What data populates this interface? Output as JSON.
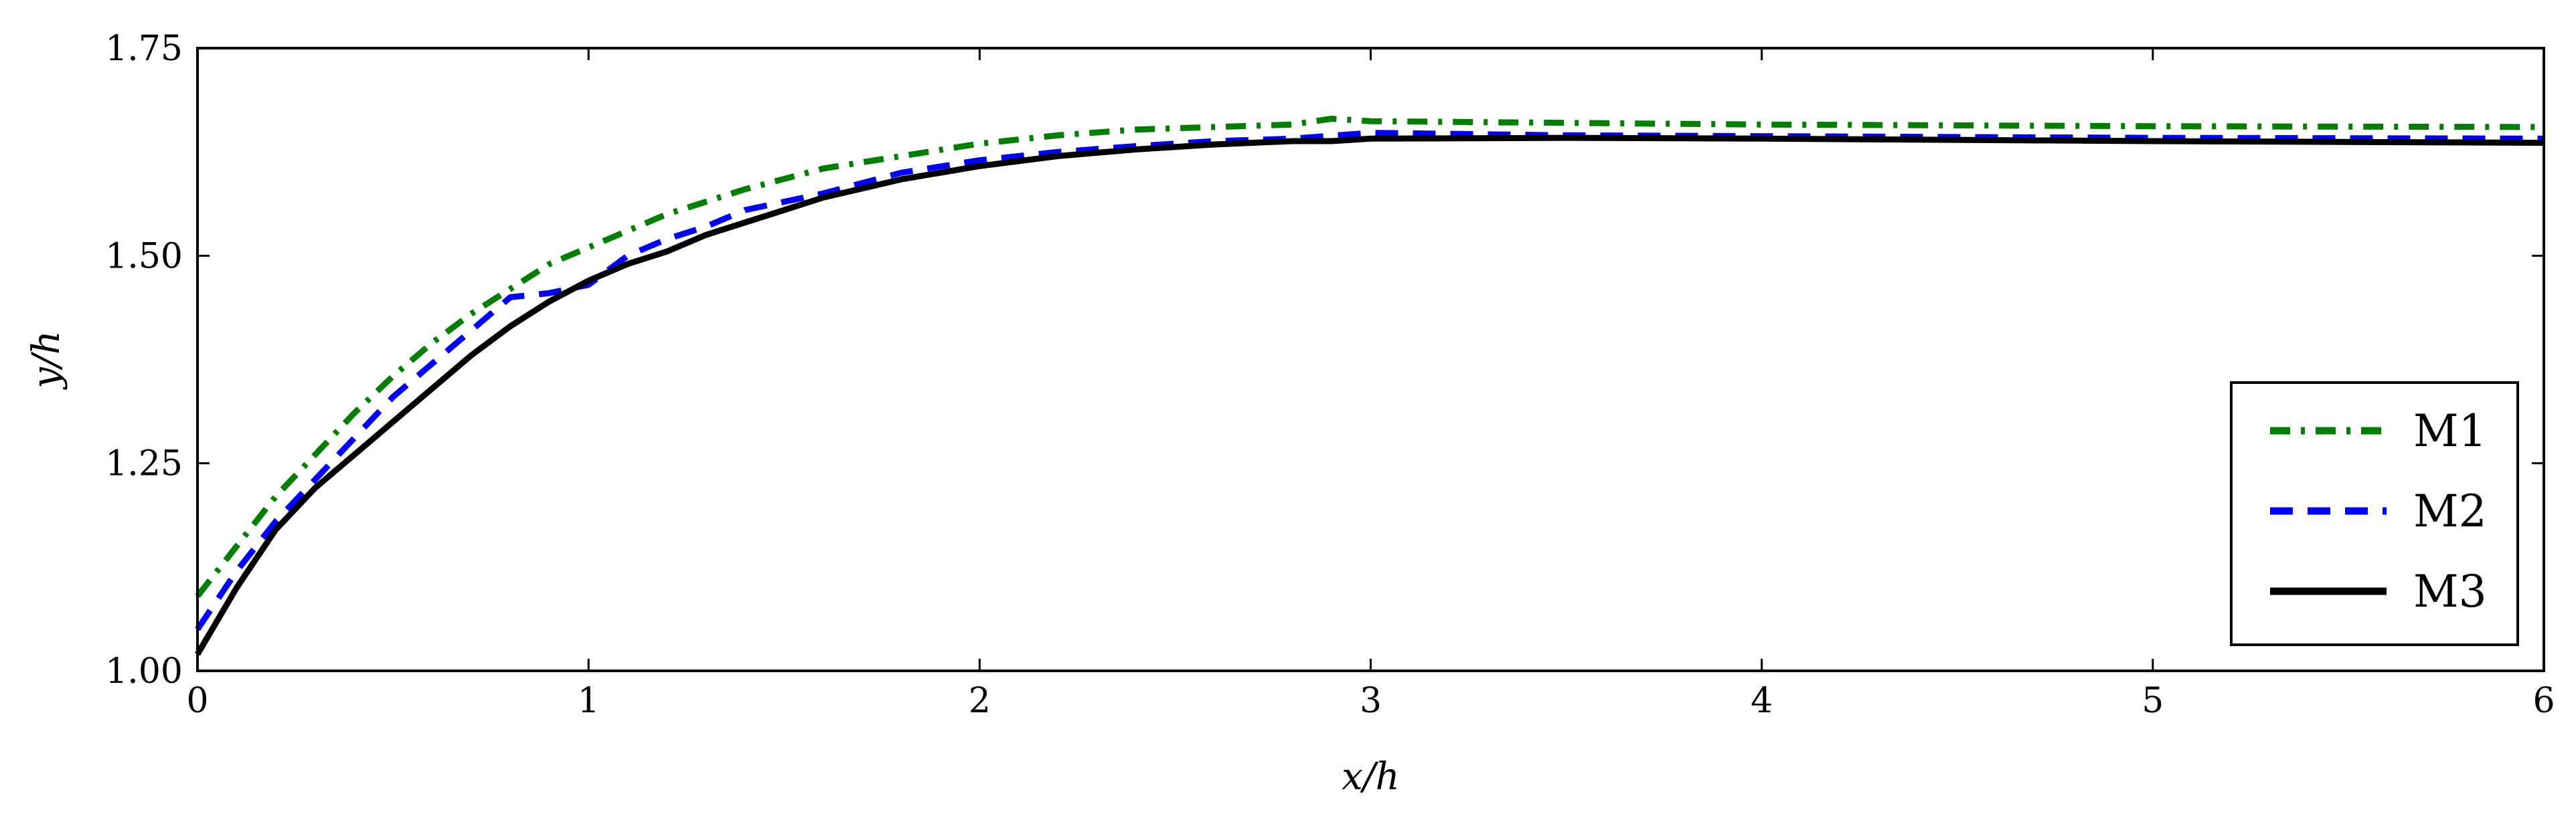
{
  "chart_data": {
    "type": "line",
    "xlabel": "x/h",
    "ylabel": "y/h",
    "xlim": [
      0,
      6
    ],
    "ylim": [
      1.0,
      1.75
    ],
    "xticks": [
      "0",
      "1",
      "2",
      "3",
      "4",
      "5",
      "6"
    ],
    "yticks": [
      "1.00",
      "1.25",
      "1.50",
      "1.75"
    ],
    "grid": false,
    "legend_position": "bottom-right",
    "series": [
      {
        "name": "M1",
        "color": "#007f00",
        "style": "dash-dot",
        "x": [
          0,
          0.1,
          0.2,
          0.3,
          0.4,
          0.5,
          0.6,
          0.7,
          0.8,
          0.9,
          1.0,
          1.2,
          1.4,
          1.6,
          1.8,
          2.0,
          2.2,
          2.4,
          2.6,
          2.8,
          2.9,
          3.0,
          3.5,
          4.0,
          5.0,
          6.0
        ],
        "y": [
          1.09,
          1.15,
          1.21,
          1.26,
          1.31,
          1.355,
          1.395,
          1.43,
          1.46,
          1.49,
          1.51,
          1.55,
          1.58,
          1.605,
          1.62,
          1.635,
          1.645,
          1.652,
          1.655,
          1.658,
          1.665,
          1.662,
          1.66,
          1.658,
          1.656,
          1.655
        ]
      },
      {
        "name": "M2",
        "color": "#0000ff",
        "style": "dashed",
        "x": [
          0,
          0.1,
          0.2,
          0.3,
          0.4,
          0.5,
          0.6,
          0.7,
          0.8,
          0.9,
          1.0,
          1.1,
          1.2,
          1.3,
          1.4,
          1.6,
          1.8,
          2.0,
          2.2,
          2.4,
          2.6,
          2.8,
          3.0,
          3.5,
          4.0,
          5.0,
          6.0
        ],
        "y": [
          1.05,
          1.12,
          1.18,
          1.23,
          1.28,
          1.33,
          1.37,
          1.41,
          1.45,
          1.455,
          1.465,
          1.5,
          1.52,
          1.535,
          1.555,
          1.575,
          1.6,
          1.615,
          1.625,
          1.632,
          1.638,
          1.641,
          1.648,
          1.645,
          1.644,
          1.642,
          1.641
        ]
      },
      {
        "name": "M3",
        "color": "#000000",
        "style": "solid",
        "x": [
          0,
          0.1,
          0.2,
          0.3,
          0.4,
          0.5,
          0.6,
          0.7,
          0.8,
          0.9,
          1.0,
          1.1,
          1.2,
          1.3,
          1.4,
          1.5,
          1.6,
          1.8,
          2.0,
          2.2,
          2.4,
          2.6,
          2.8,
          2.9,
          3.0,
          3.5,
          4.0,
          5.0,
          6.0
        ],
        "y": [
          1.02,
          1.1,
          1.17,
          1.22,
          1.26,
          1.3,
          1.34,
          1.38,
          1.415,
          1.445,
          1.47,
          1.49,
          1.505,
          1.525,
          1.54,
          1.555,
          1.57,
          1.592,
          1.608,
          1.62,
          1.628,
          1.634,
          1.638,
          1.638,
          1.641,
          1.642,
          1.641,
          1.638,
          1.636
        ]
      }
    ]
  }
}
